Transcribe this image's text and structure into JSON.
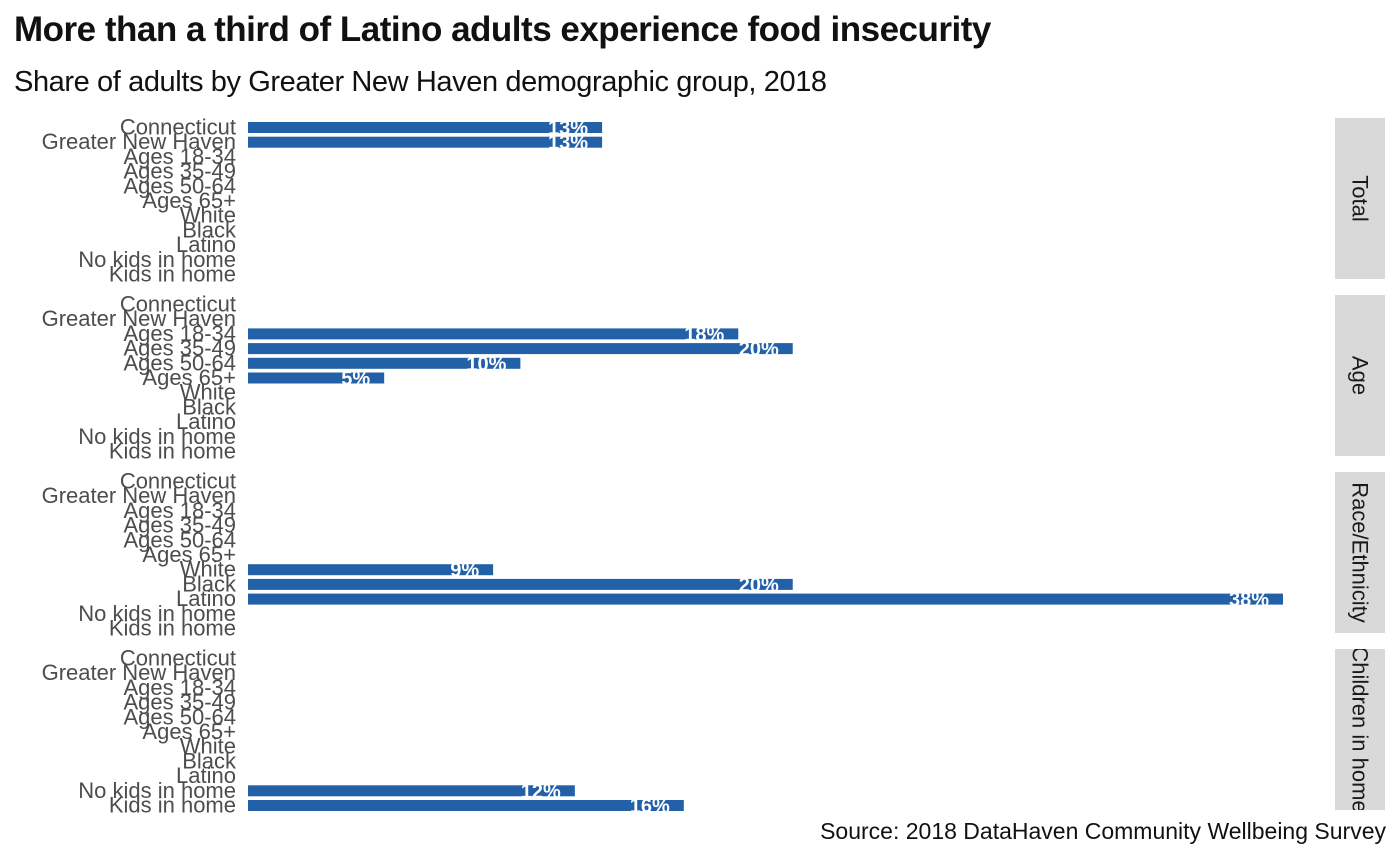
{
  "chart_data": {
    "type": "bar",
    "orientation": "horizontal",
    "title": "More than a third of Latino adults experience food insecurity",
    "subtitle": "Share of adults by Greater New Haven demographic group, 2018",
    "caption": "Source: 2018 DataHaven Community Wellbeing Survey",
    "categories": [
      "Connecticut",
      "Greater New Haven",
      "Ages 18-34",
      "Ages 35-49",
      "Ages 50-64",
      "Ages 65+",
      "White",
      "Black",
      "Latino",
      "No kids in home",
      "Kids in home"
    ],
    "xlim": [
      0,
      0.38
    ],
    "bar_color": "#2260a8",
    "panels": [
      {
        "name": "Total",
        "values": [
          0.13,
          0.13,
          null,
          null,
          null,
          null,
          null,
          null,
          null,
          null,
          null
        ],
        "labels": [
          "13%",
          "13%",
          "",
          "",
          "",
          "",
          "",
          "",
          "",
          "",
          ""
        ]
      },
      {
        "name": "Age",
        "values": [
          null,
          null,
          0.18,
          0.2,
          0.1,
          0.05,
          null,
          null,
          null,
          null,
          null
        ],
        "labels": [
          "",
          "",
          "18%",
          "20%",
          "10%",
          "5%",
          "",
          "",
          "",
          "",
          ""
        ]
      },
      {
        "name": "Race/Ethnicity",
        "values": [
          null,
          null,
          null,
          null,
          null,
          null,
          0.09,
          0.2,
          0.38,
          null,
          null
        ],
        "labels": [
          "",
          "",
          "",
          "",
          "",
          "",
          "9%",
          "20%",
          "38%",
          "",
          ""
        ]
      },
      {
        "name": "Children in home",
        "values": [
          null,
          null,
          null,
          null,
          null,
          null,
          null,
          null,
          null,
          0.12,
          0.16
        ],
        "labels": [
          "",
          "",
          "",
          "",
          "",
          "",
          "",
          "",
          "",
          "12%",
          "16%"
        ]
      }
    ]
  }
}
